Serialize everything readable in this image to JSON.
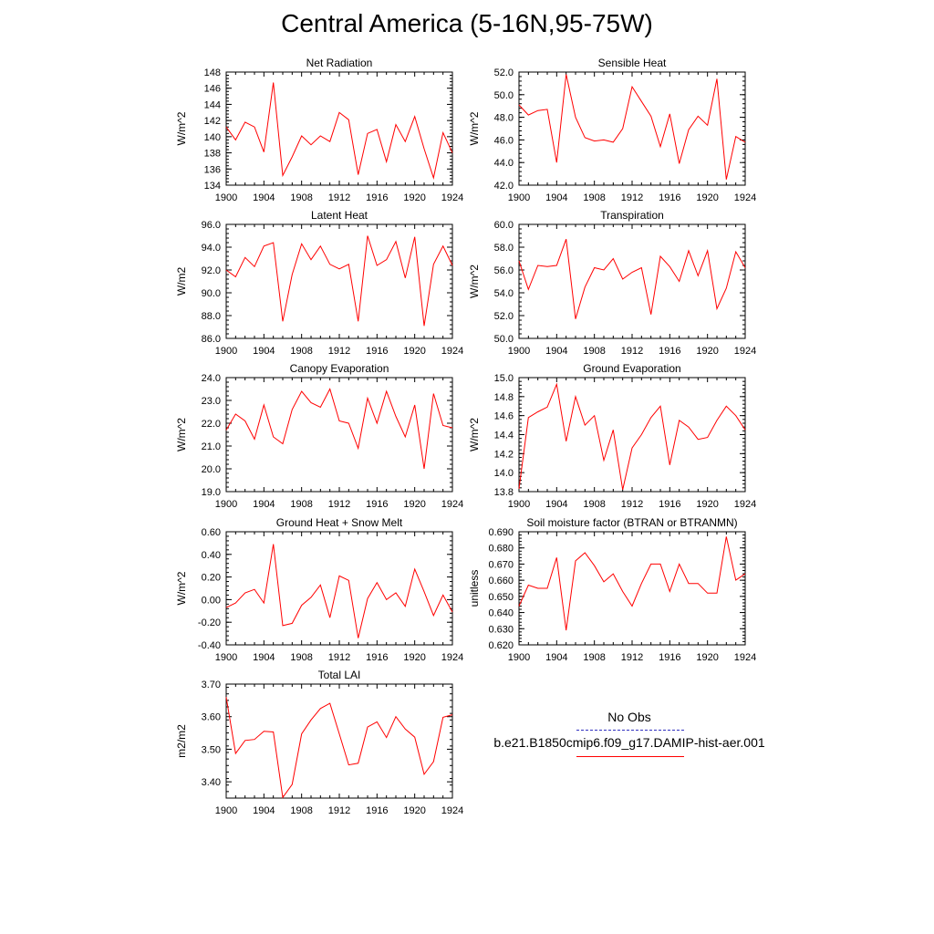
{
  "page": {
    "title": "Central America (5-16N,95-75W)"
  },
  "legend": {
    "entries": [
      {
        "label": "No Obs",
        "color": "#3030c0",
        "dash": "dashed"
      },
      {
        "label": "b.e21.B1850cmip6.f09_g17.DAMIP-hist-aer.001",
        "color": "#ff0000",
        "dash": "solid"
      }
    ]
  },
  "chart_data": [
    {
      "type": "line",
      "title": "Net Radiation",
      "ylabel": "W/m^2",
      "xlim": [
        1900,
        1924
      ],
      "xticks": [
        "1900",
        "1904",
        "1908",
        "1912",
        "1916",
        "1920",
        "1924"
      ],
      "ylim": [
        134,
        148
      ],
      "yticks": [
        "134",
        "136",
        "138",
        "140",
        "142",
        "144",
        "146",
        "148"
      ],
      "series": [
        {
          "color": "#ff0000",
          "x": [
            1900,
            1901,
            1902,
            1903,
            1904,
            1905,
            1906,
            1907,
            1908,
            1909,
            1910,
            1911,
            1912,
            1913,
            1914,
            1915,
            1916,
            1917,
            1918,
            1919,
            1920,
            1921,
            1922,
            1923,
            1924
          ],
          "y": [
            141.2,
            139.6,
            141.8,
            141.2,
            138.1,
            146.7,
            135.2,
            137.5,
            140.1,
            139.0,
            140.1,
            139.4,
            143.0,
            142.1,
            135.3,
            140.4,
            140.9,
            136.9,
            141.5,
            139.4,
            142.5,
            138.5,
            134.9,
            140.5,
            138.0
          ]
        }
      ]
    },
    {
      "type": "line",
      "title": "Sensible Heat",
      "ylabel": "W/m^2",
      "xlim": [
        1900,
        1924
      ],
      "xticks": [
        "1900",
        "1904",
        "1908",
        "1912",
        "1916",
        "1920",
        "1924"
      ],
      "ylim": [
        42.0,
        52.0
      ],
      "yticks": [
        "42.0",
        "44.0",
        "46.0",
        "48.0",
        "50.0",
        "52.0"
      ],
      "series": [
        {
          "color": "#ff0000",
          "x": [
            1900,
            1901,
            1902,
            1903,
            1904,
            1905,
            1906,
            1907,
            1908,
            1909,
            1910,
            1911,
            1912,
            1913,
            1914,
            1915,
            1916,
            1917,
            1918,
            1919,
            1920,
            1921,
            1922,
            1923,
            1924
          ],
          "y": [
            49.1,
            48.2,
            48.6,
            48.7,
            44.0,
            51.8,
            48.0,
            46.2,
            45.9,
            46.0,
            45.8,
            47.0,
            50.7,
            49.4,
            48.1,
            45.4,
            48.3,
            43.9,
            46.9,
            48.1,
            47.3,
            51.4,
            42.5,
            46.3,
            45.8
          ]
        }
      ]
    },
    {
      "type": "line",
      "title": "Latent Heat",
      "ylabel": "W/m2",
      "xlim": [
        1900,
        1924
      ],
      "xticks": [
        "1900",
        "1904",
        "1908",
        "1912",
        "1916",
        "1920",
        "1924"
      ],
      "ylim": [
        86.0,
        96.0
      ],
      "yticks": [
        "86.0",
        "88.0",
        "90.0",
        "92.0",
        "94.0",
        "96.0"
      ],
      "series": [
        {
          "color": "#ff0000",
          "x": [
            1900,
            1901,
            1902,
            1903,
            1904,
            1905,
            1906,
            1907,
            1908,
            1909,
            1910,
            1911,
            1912,
            1913,
            1914,
            1915,
            1916,
            1917,
            1918,
            1919,
            1920,
            1921,
            1922,
            1923,
            1924
          ],
          "y": [
            92.0,
            91.4,
            93.1,
            92.3,
            94.1,
            94.4,
            87.5,
            91.6,
            94.3,
            92.9,
            94.1,
            92.5,
            92.1,
            92.5,
            87.5,
            95.0,
            92.4,
            92.9,
            94.5,
            91.3,
            94.9,
            87.1,
            92.5,
            94.1,
            92.4
          ]
        }
      ]
    },
    {
      "type": "line",
      "title": "Transpiration",
      "ylabel": "W/m^2",
      "xlim": [
        1900,
        1924
      ],
      "xticks": [
        "1900",
        "1904",
        "1908",
        "1912",
        "1916",
        "1920",
        "1924"
      ],
      "ylim": [
        50.0,
        60.0
      ],
      "yticks": [
        "50.0",
        "52.0",
        "54.0",
        "56.0",
        "58.0",
        "60.0"
      ],
      "series": [
        {
          "color": "#ff0000",
          "x": [
            1900,
            1901,
            1902,
            1903,
            1904,
            1905,
            1906,
            1907,
            1908,
            1909,
            1910,
            1911,
            1912,
            1913,
            1914,
            1915,
            1916,
            1917,
            1918,
            1919,
            1920,
            1921,
            1922,
            1923,
            1924
          ],
          "y": [
            56.8,
            54.3,
            56.4,
            56.3,
            56.4,
            58.7,
            51.7,
            54.5,
            56.2,
            56.0,
            57.0,
            55.2,
            55.8,
            56.2,
            52.1,
            57.2,
            56.3,
            55.0,
            57.7,
            55.5,
            57.7,
            52.6,
            54.4,
            57.6,
            56.2
          ]
        }
      ]
    },
    {
      "type": "line",
      "title": "Canopy Evaporation",
      "ylabel": "W/m^2",
      "xlim": [
        1900,
        1924
      ],
      "xticks": [
        "1900",
        "1904",
        "1908",
        "1912",
        "1916",
        "1920",
        "1924"
      ],
      "ylim": [
        19.0,
        24.0
      ],
      "yticks": [
        "19.0",
        "20.0",
        "21.0",
        "22.0",
        "23.0",
        "24.0"
      ],
      "series": [
        {
          "color": "#ff0000",
          "x": [
            1900,
            1901,
            1902,
            1903,
            1904,
            1905,
            1906,
            1907,
            1908,
            1909,
            1910,
            1911,
            1912,
            1913,
            1914,
            1915,
            1916,
            1917,
            1918,
            1919,
            1920,
            1921,
            1922,
            1923,
            1924
          ],
          "y": [
            21.7,
            22.4,
            22.1,
            21.3,
            22.8,
            21.4,
            21.1,
            22.6,
            23.4,
            22.9,
            22.7,
            23.5,
            22.1,
            22.0,
            20.9,
            23.1,
            22.0,
            23.4,
            22.3,
            21.4,
            22.8,
            20.0,
            23.3,
            21.9,
            21.8
          ]
        }
      ]
    },
    {
      "type": "line",
      "title": "Ground Evaporation",
      "ylabel": "W/m^2",
      "xlim": [
        1900,
        1924
      ],
      "xticks": [
        "1900",
        "1904",
        "1908",
        "1912",
        "1916",
        "1920",
        "1924"
      ],
      "ylim": [
        13.8,
        15.0
      ],
      "yticks": [
        "13.8",
        "14.0",
        "14.2",
        "14.4",
        "14.6",
        "14.8",
        "15.0"
      ],
      "series": [
        {
          "color": "#ff0000",
          "x": [
            1900,
            1901,
            1902,
            1903,
            1904,
            1905,
            1906,
            1907,
            1908,
            1909,
            1910,
            1911,
            1912,
            1913,
            1914,
            1915,
            1916,
            1917,
            1918,
            1919,
            1920,
            1921,
            1922,
            1923,
            1924
          ],
          "y": [
            13.83,
            14.58,
            14.64,
            14.69,
            14.93,
            14.33,
            14.8,
            14.5,
            14.6,
            14.13,
            14.45,
            13.82,
            14.26,
            14.4,
            14.58,
            14.7,
            14.08,
            14.55,
            14.48,
            14.35,
            14.37,
            14.55,
            14.7,
            14.6,
            14.45
          ]
        }
      ]
    },
    {
      "type": "line",
      "title": "Ground Heat + Snow Melt",
      "ylabel": "W/m^2",
      "xlim": [
        1900,
        1924
      ],
      "xticks": [
        "1900",
        "1904",
        "1908",
        "1912",
        "1916",
        "1920",
        "1924"
      ],
      "ylim": [
        -0.4,
        0.6
      ],
      "yticks": [
        "-0.40",
        "-0.20",
        "0.00",
        "0.20",
        "0.40",
        "0.60"
      ],
      "series": [
        {
          "color": "#ff0000",
          "x": [
            1900,
            1901,
            1902,
            1903,
            1904,
            1905,
            1906,
            1907,
            1908,
            1909,
            1910,
            1911,
            1912,
            1913,
            1914,
            1915,
            1916,
            1917,
            1918,
            1919,
            1920,
            1921,
            1922,
            1923,
            1924
          ],
          "y": [
            -0.07,
            -0.03,
            0.06,
            0.09,
            -0.03,
            0.49,
            -0.23,
            -0.21,
            -0.05,
            0.02,
            0.13,
            -0.16,
            0.21,
            0.17,
            -0.34,
            0.01,
            0.15,
            0.0,
            0.06,
            -0.06,
            0.27,
            0.07,
            -0.14,
            0.04,
            -0.11
          ]
        }
      ]
    },
    {
      "type": "line",
      "title": "Soil moisture factor (BTRAN or BTRANMN)",
      "ylabel": "unitless",
      "xlim": [
        1900,
        1924
      ],
      "xticks": [
        "1900",
        "1904",
        "1908",
        "1912",
        "1916",
        "1920",
        "1924"
      ],
      "ylim": [
        0.62,
        0.69
      ],
      "yticks": [
        "0.620",
        "0.630",
        "0.640",
        "0.650",
        "0.660",
        "0.670",
        "0.680",
        "0.690"
      ],
      "series": [
        {
          "color": "#ff0000",
          "x": [
            1900,
            1901,
            1902,
            1903,
            1904,
            1905,
            1906,
            1907,
            1908,
            1909,
            1910,
            1911,
            1912,
            1913,
            1914,
            1915,
            1916,
            1917,
            1918,
            1919,
            1920,
            1921,
            1922,
            1923,
            1924
          ],
          "y": [
            0.644,
            0.657,
            0.655,
            0.655,
            0.674,
            0.629,
            0.672,
            0.677,
            0.669,
            0.659,
            0.664,
            0.653,
            0.644,
            0.658,
            0.67,
            0.67,
            0.653,
            0.67,
            0.658,
            0.658,
            0.652,
            0.652,
            0.687,
            0.66,
            0.664
          ]
        }
      ]
    },
    {
      "type": "line",
      "title": "Total LAI",
      "ylabel": "m2/m2",
      "xlim": [
        1900,
        1924
      ],
      "xticks": [
        "1900",
        "1904",
        "1908",
        "1912",
        "1916",
        "1920",
        "1924"
      ],
      "ylim": [
        3.35,
        3.7
      ],
      "yticks": [
        "3.40",
        "3.50",
        "3.60",
        "3.70"
      ],
      "series": [
        {
          "color": "#ff0000",
          "x": [
            1900,
            1901,
            1902,
            1903,
            1904,
            1905,
            1906,
            1907,
            1908,
            1909,
            1910,
            1911,
            1912,
            1913,
            1914,
            1915,
            1916,
            1917,
            1918,
            1919,
            1920,
            1921,
            1922,
            1923,
            1924
          ],
          "y": [
            3.66,
            3.487,
            3.527,
            3.53,
            3.555,
            3.553,
            3.352,
            3.392,
            3.547,
            3.59,
            3.625,
            3.641,
            3.547,
            3.452,
            3.457,
            3.568,
            3.584,
            3.536,
            3.6,
            3.562,
            3.537,
            3.423,
            3.462,
            3.598,
            3.606
          ]
        }
      ]
    }
  ]
}
